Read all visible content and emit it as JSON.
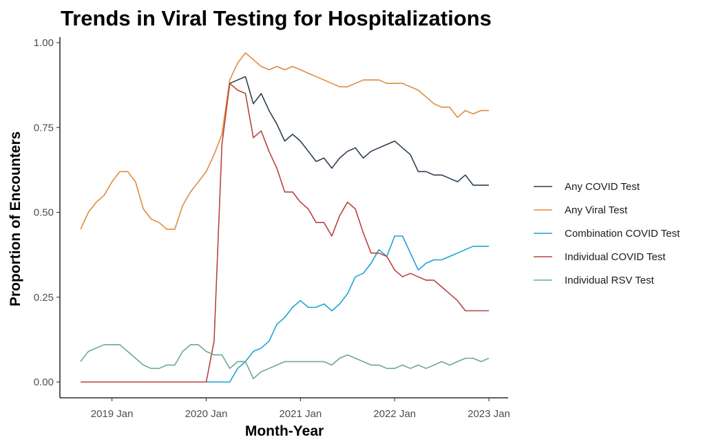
{
  "chart_data": {
    "type": "line",
    "title": "Trends in Viral Testing for Hospitalizations",
    "xlabel": "Month-Year",
    "ylabel": "Proportion of Encounters",
    "x_ticks": [
      "2019 Jan",
      "2020 Jan",
      "2021 Jan",
      "2022 Jan",
      "2023 Jan"
    ],
    "y_ticks": [
      "0.00",
      "0.25",
      "0.50",
      "0.75",
      "1.00"
    ],
    "ylim": [
      0,
      1
    ],
    "xlim": [
      "2018-09",
      "2023-01"
    ],
    "grid": false,
    "legend_position": "right",
    "x": [
      "2018-09",
      "2018-10",
      "2018-11",
      "2018-12",
      "2019-01",
      "2019-02",
      "2019-03",
      "2019-04",
      "2019-05",
      "2019-06",
      "2019-07",
      "2019-08",
      "2019-09",
      "2019-10",
      "2019-11",
      "2019-12",
      "2020-01",
      "2020-02",
      "2020-03",
      "2020-04",
      "2020-05",
      "2020-06",
      "2020-07",
      "2020-08",
      "2020-09",
      "2020-10",
      "2020-11",
      "2020-12",
      "2021-01",
      "2021-02",
      "2021-03",
      "2021-04",
      "2021-05",
      "2021-06",
      "2021-07",
      "2021-08",
      "2021-09",
      "2021-10",
      "2021-11",
      "2021-12",
      "2022-01",
      "2022-02",
      "2022-03",
      "2022-04",
      "2022-05",
      "2022-06",
      "2022-07",
      "2022-08",
      "2022-09",
      "2022-10",
      "2022-11",
      "2022-12",
      "2023-01"
    ],
    "series": [
      {
        "name": "Any COVID Test",
        "color": "#2c3e50",
        "values": [
          null,
          null,
          null,
          null,
          null,
          null,
          null,
          null,
          null,
          null,
          null,
          null,
          null,
          null,
          null,
          null,
          null,
          null,
          null,
          0.88,
          0.89,
          0.9,
          0.82,
          0.85,
          0.8,
          0.76,
          0.71,
          0.73,
          0.71,
          0.68,
          0.65,
          0.66,
          0.63,
          0.66,
          0.68,
          0.69,
          0.66,
          0.68,
          0.69,
          0.7,
          0.71,
          0.69,
          0.67,
          0.62,
          0.62,
          0.61,
          0.61,
          0.6,
          0.59,
          0.61,
          0.58,
          0.58,
          0.58
        ]
      },
      {
        "name": "Any Viral Test",
        "color": "#e08a3c",
        "values": [
          0.45,
          0.5,
          0.53,
          0.55,
          0.59,
          0.62,
          0.62,
          0.59,
          0.51,
          0.48,
          0.47,
          0.45,
          0.45,
          0.52,
          0.56,
          0.59,
          0.62,
          0.67,
          0.73,
          0.89,
          0.94,
          0.97,
          0.95,
          0.93,
          0.92,
          0.93,
          0.92,
          0.93,
          0.92,
          0.91,
          0.9,
          0.89,
          0.88,
          0.87,
          0.87,
          0.88,
          0.89,
          0.89,
          0.89,
          0.88,
          0.88,
          0.88,
          0.87,
          0.86,
          0.84,
          0.82,
          0.81,
          0.81,
          0.78,
          0.8,
          0.79,
          0.8,
          0.8
        ]
      },
      {
        "name": "Combination COVID Test",
        "color": "#1aa3d4",
        "values": [
          null,
          null,
          null,
          null,
          null,
          null,
          null,
          null,
          null,
          null,
          null,
          null,
          null,
          null,
          null,
          null,
          0.0,
          0.0,
          0.0,
          0.0,
          0.04,
          0.06,
          0.09,
          0.1,
          0.12,
          0.17,
          0.19,
          0.22,
          0.24,
          0.22,
          0.22,
          0.23,
          0.21,
          0.23,
          0.26,
          0.31,
          0.32,
          0.35,
          0.39,
          0.37,
          0.43,
          0.43,
          0.38,
          0.33,
          0.35,
          0.36,
          0.36,
          0.37,
          0.38,
          0.39,
          0.4,
          0.4,
          0.4
        ]
      },
      {
        "name": "Individual COVID Test",
        "color": "#b8423c",
        "values": [
          0.0,
          0.0,
          0.0,
          0.0,
          0.0,
          0.0,
          0.0,
          0.0,
          0.0,
          0.0,
          0.0,
          0.0,
          0.0,
          0.0,
          0.0,
          0.0,
          0.0,
          0.12,
          0.7,
          0.88,
          0.86,
          0.85,
          0.72,
          0.74,
          0.68,
          0.63,
          0.56,
          0.56,
          0.53,
          0.51,
          0.47,
          0.47,
          0.43,
          0.49,
          0.53,
          0.51,
          0.44,
          0.38,
          0.38,
          0.37,
          0.33,
          0.31,
          0.32,
          0.31,
          0.3,
          0.3,
          0.28,
          0.26,
          0.24,
          0.21,
          0.21,
          0.21,
          0.21
        ]
      },
      {
        "name": "Individual RSV Test",
        "color": "#6aa891",
        "values": [
          0.06,
          0.09,
          0.1,
          0.11,
          0.11,
          0.11,
          0.09,
          0.07,
          0.05,
          0.04,
          0.04,
          0.05,
          0.05,
          0.09,
          0.11,
          0.11,
          0.09,
          0.08,
          0.08,
          0.04,
          0.06,
          0.06,
          0.01,
          0.03,
          0.04,
          0.05,
          0.06,
          0.06,
          0.06,
          0.06,
          0.06,
          0.06,
          0.05,
          0.07,
          0.08,
          0.07,
          0.06,
          0.05,
          0.05,
          0.04,
          0.04,
          0.05,
          0.04,
          0.05,
          0.04,
          0.05,
          0.06,
          0.05,
          0.06,
          0.07,
          0.07,
          0.06,
          0.07
        ]
      }
    ]
  }
}
